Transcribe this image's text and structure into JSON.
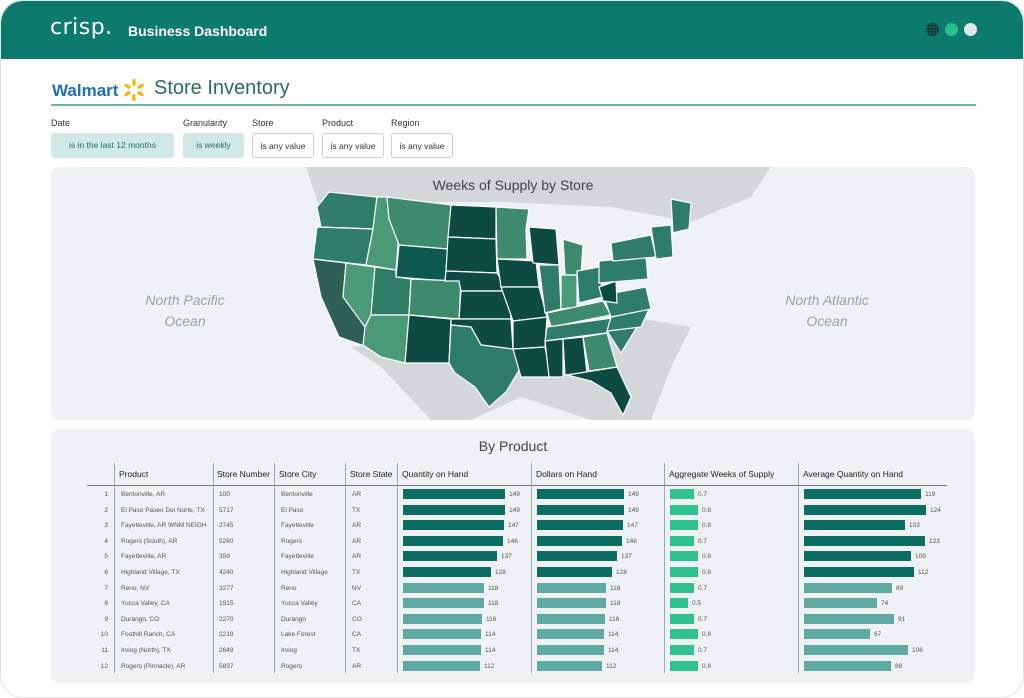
{
  "app": {
    "logo": "crisp.",
    "title": "Business Dashboard"
  },
  "header": {
    "retailer": "Walmart",
    "title": "Store Inventory"
  },
  "filters": [
    {
      "label": "Date",
      "value": "is in the last 12 months",
      "active": true
    },
    {
      "label": "Granularity",
      "value": "is weekly",
      "active": true
    },
    {
      "label": "Store",
      "value": "is any value",
      "active": false
    },
    {
      "label": "Product",
      "value": "is any value",
      "active": false
    },
    {
      "label": "Region",
      "value": "is any value",
      "active": false
    }
  ],
  "map": {
    "title": "Weeks of Supply by Store",
    "ocean_left": "North Pacific Ocean",
    "ocean_right": "North Atlantic Ocean"
  },
  "table": {
    "title": "By Product",
    "columns": [
      "Product",
      "Store Number",
      "Store City",
      "Store State",
      "Quantity on Hand",
      "Dollars on Hand",
      "Aggregate Weeks of Supply",
      "Average Quantity on Hand"
    ],
    "rows": [
      [
        "1",
        "Bentonville, AR",
        "100",
        "Bentonville",
        "AR",
        "149",
        "149",
        "0.7",
        "119"
      ],
      [
        "2",
        "El Paso Paseo Del Norte, TX",
        "5717",
        "El Paso",
        "TX",
        "149",
        "149",
        "0.8",
        "124"
      ],
      [
        "3",
        "Fayetteville, AR WNM NEIGH",
        "2745",
        "Fayetteville",
        "AR",
        "147",
        "147",
        "0.8",
        "103"
      ],
      [
        "4",
        "Rogers (South), AR",
        "5260",
        "Rogers",
        "AR",
        "146",
        "146",
        "0.7",
        "123"
      ],
      [
        "5",
        "Fayetteville, AR",
        "359",
        "Fayetteville",
        "AR",
        "137",
        "137",
        "0.8",
        "109"
      ],
      [
        "6",
        "Highland Village, TX",
        "4240",
        "Highland Village",
        "TX",
        "128",
        "128",
        "0.8",
        "112"
      ],
      [
        "7",
        "Reno, NV",
        "3277",
        "Reno",
        "NV",
        "118",
        "118",
        "0.7",
        "89"
      ],
      [
        "8",
        "Yucca Valley, CA",
        "1915",
        "Yucca Valley",
        "CA",
        "118",
        "118",
        "0.5",
        "74"
      ],
      [
        "9",
        "Durango, CO",
        "2270",
        "Durango",
        "CO",
        "116",
        "116",
        "0.7",
        "91"
      ],
      [
        "10",
        "Foothill Ranch, CA",
        "2218",
        "Lake Forest",
        "CA",
        "114",
        "114",
        "0.8",
        "67"
      ],
      [
        "11",
        "Irving (North), TX",
        "2649",
        "Irving",
        "TX",
        "114",
        "114",
        "0.7",
        "106"
      ],
      [
        "12",
        "Rogers (Pinnacle), AR",
        "5837",
        "Rogers",
        "AR",
        "112",
        "112",
        "0.8",
        "88"
      ]
    ]
  },
  "colors": {
    "brand": "#0c7a6d",
    "walmart_blue": "#1f6fb5",
    "walmart_yellow": "#f7b600",
    "dark": "#08463f",
    "mid": "#2f7d67",
    "light": "#4a9a78",
    "bar_dark": "#0c6e62",
    "bar_light": "#5eaaa2",
    "wos_bar": "#2fc28f"
  }
}
